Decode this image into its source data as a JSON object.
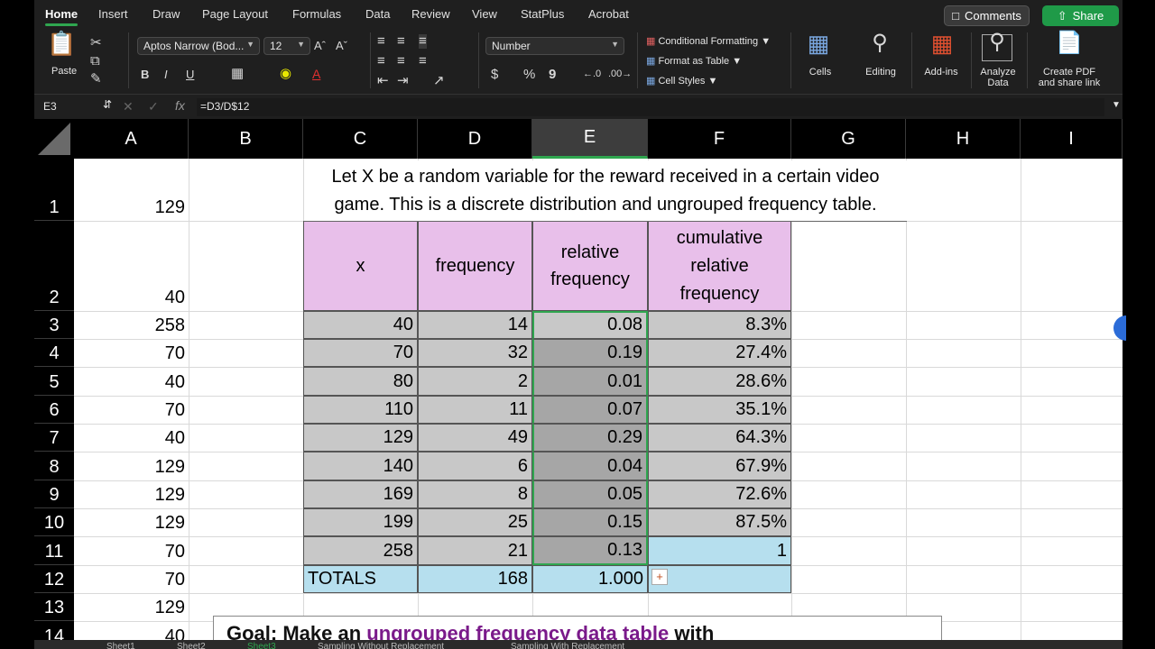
{
  "ribbon": {
    "tabs": [
      "Home",
      "Insert",
      "Draw",
      "Page Layout",
      "Formulas",
      "Data",
      "Review",
      "View",
      "StatPlus",
      "Acrobat"
    ],
    "active_tab": "Home",
    "comments_label": "Comments",
    "share_label": "Share",
    "paste_label": "Paste",
    "font_name": "Aptos Narrow (Bod...",
    "font_size": "12",
    "bold": "B",
    "italic": "I",
    "underline": "U",
    "number_format": "Number",
    "dollar": "$",
    "percent": "%",
    "comma": "9",
    "conditional_formatting": "Conditional Formatting",
    "format_as_table": "Format as Table",
    "cell_styles": "Cell Styles",
    "cells_label": "Cells",
    "editing_label": "Editing",
    "addins_label": "Add-ins",
    "analyze_label_1": "Analyze",
    "analyze_label_2": "Data",
    "pdf_label_1": "Create PDF",
    "pdf_label_2": "and share link"
  },
  "formula_bar": {
    "cell_ref": "E3",
    "formula": "=D3/D$12",
    "fx": "fx"
  },
  "columns": [
    "A",
    "B",
    "C",
    "D",
    "E",
    "F",
    "G",
    "H",
    "I"
  ],
  "selected_column": "E",
  "rows": [
    "1",
    "2",
    "3",
    "4",
    "5",
    "6",
    "7",
    "8",
    "9",
    "10",
    "11",
    "12",
    "13",
    "14"
  ],
  "column_a": [
    "129",
    "40",
    "258",
    "70",
    "40",
    "70",
    "40",
    "129",
    "129",
    "129",
    "70",
    "70",
    "129",
    "40"
  ],
  "title_line1": "Let X be a random variable for the reward received in a certain video",
  "title_line2": "game. This is a discrete distribution and ungrouped frequency table.",
  "table": {
    "headers": {
      "x": "x",
      "frequency": "frequency",
      "rel1": "relative",
      "rel2": "frequency",
      "cum1": "cumulative",
      "cum2": "relative",
      "cum3": "frequency"
    },
    "rows": [
      {
        "x": "40",
        "freq": "14",
        "rel": "0.08",
        "cum": "8.3%"
      },
      {
        "x": "70",
        "freq": "32",
        "rel": "0.19",
        "cum": "27.4%"
      },
      {
        "x": "80",
        "freq": "2",
        "rel": "0.01",
        "cum": "28.6%"
      },
      {
        "x": "110",
        "freq": "11",
        "rel": "0.07",
        "cum": "35.1%"
      },
      {
        "x": "129",
        "freq": "49",
        "rel": "0.29",
        "cum": "64.3%"
      },
      {
        "x": "140",
        "freq": "6",
        "rel": "0.04",
        "cum": "67.9%"
      },
      {
        "x": "169",
        "freq": "8",
        "rel": "0.05",
        "cum": "72.6%"
      },
      {
        "x": "199",
        "freq": "25",
        "rel": "0.15",
        "cum": "87.5%"
      },
      {
        "x": "258",
        "freq": "21",
        "rel": "0.13",
        "cum": "1"
      }
    ],
    "totals_label": "TOTALS",
    "totals_freq": "168",
    "totals_rel": "1.000"
  },
  "bottom_note": {
    "prefix": "Goal: Make an ",
    "highlight": "ungrouped frequency data table",
    "suffix": " with"
  },
  "sheet_tabs": [
    "Sheet1",
    "Sheet2",
    "Sheet3",
    "Sampling Without Replacement",
    "Sampling With Replacement"
  ],
  "active_sheet": "Sheet3",
  "colors": {
    "header_pink": "#e8bfea",
    "gray_cell": "#c8c8c8",
    "dark_gray_cell": "#a6a6a6",
    "light_blue": "#b6dfee",
    "accent_green": "#2fa64f"
  }
}
